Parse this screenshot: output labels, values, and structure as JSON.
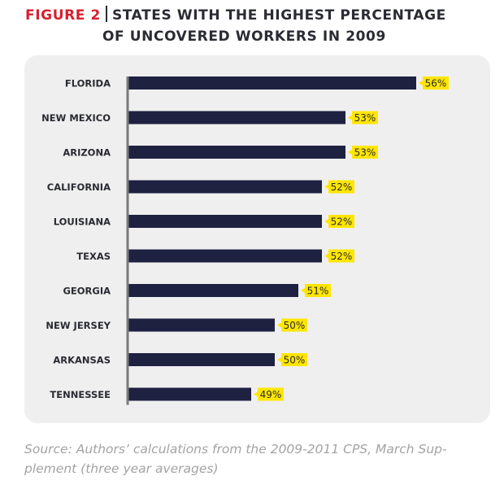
{
  "figure": {
    "label": "FIGURE 2",
    "title_line1": "STATES WITH THE HIGHEST PERCENTAGE",
    "title_line2": "OF UNCOVERED WORKERS IN 2009"
  },
  "source_text": "Source: Authors’ calculations from the 2009-2011 CPS, March Sup-plement (three year averages)",
  "colors": {
    "bar": "#1e2140",
    "label_bg": "#ffe600",
    "title_accent": "#d5202f",
    "panel_bg": "#efefef",
    "axis": "#7a7a7a"
  },
  "chart_data": {
    "type": "bar",
    "orientation": "horizontal",
    "title": "STATES WITH THE HIGHEST PERCENTAGE OF UNCOVERED WORKERS IN 2009",
    "categories": [
      "FLORIDA",
      "NEW MEXICO",
      "ARIZONA",
      "CALIFORNIA",
      "LOUISIANA",
      "TEXAS",
      "GEORGIA",
      "NEW JERSEY",
      "ARKANSAS",
      "TENNESSEE"
    ],
    "values": [
      56,
      53,
      53,
      52,
      52,
      52,
      51,
      50,
      50,
      49
    ],
    "value_labels": [
      "56%",
      "53%",
      "53%",
      "52%",
      "52%",
      "52%",
      "51%",
      "50%",
      "50%",
      "49%"
    ],
    "unit": "%",
    "grid": false,
    "legend": "none"
  }
}
